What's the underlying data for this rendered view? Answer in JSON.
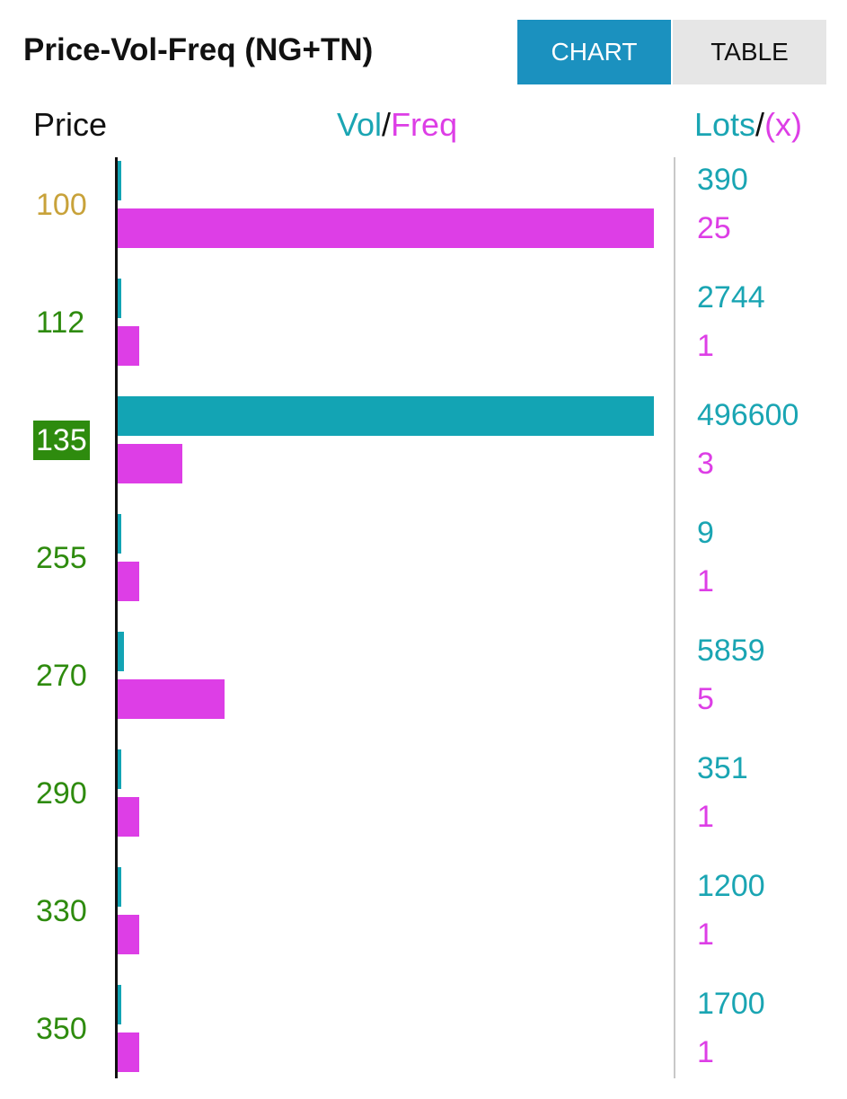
{
  "header": {
    "title": "Price-Vol-Freq (NG+TN)",
    "chart_label": "CHART",
    "table_label": "TABLE",
    "active_view": "CHART"
  },
  "columns": {
    "price": "Price",
    "vol": "Vol",
    "slash": "/",
    "freq": "Freq",
    "lots": "Lots",
    "x": "(x)"
  },
  "colors": {
    "vol": "#13a4b4",
    "freq": "#dd3ee6",
    "price_default": "#2e8b0e",
    "price_first": "#c8a23a",
    "price_highlight_bg": "#2e8b0e",
    "active_tab": "#1b91bf"
  },
  "chart_data": {
    "type": "bar",
    "orientation": "horizontal",
    "categories": [
      "100",
      "112",
      "135",
      "255",
      "270",
      "290",
      "330",
      "350"
    ],
    "series": [
      {
        "name": "Vol",
        "values": [
          390,
          2744,
          496600,
          9,
          5859,
          351,
          1200,
          1700
        ]
      },
      {
        "name": "Freq",
        "values": [
          25,
          1,
          3,
          1,
          5,
          1,
          1,
          1
        ]
      }
    ],
    "rows": [
      {
        "price": "100",
        "lots": "390",
        "freq": "25",
        "style": "first"
      },
      {
        "price": "112",
        "lots": "2744",
        "freq": "1",
        "style": "normal"
      },
      {
        "price": "135",
        "lots": "496600",
        "freq": "3",
        "style": "highlight"
      },
      {
        "price": "255",
        "lots": "9",
        "freq": "1",
        "style": "normal"
      },
      {
        "price": "270",
        "lots": "5859",
        "freq": "5",
        "style": "normal"
      },
      {
        "price": "290",
        "lots": "351",
        "freq": "1",
        "style": "normal"
      },
      {
        "price": "330",
        "lots": "1200",
        "freq": "1",
        "style": "normal"
      },
      {
        "price": "350",
        "lots": "1700",
        "freq": "1",
        "style": "normal"
      }
    ],
    "vol_max": 496600,
    "freq_max": 25
  }
}
